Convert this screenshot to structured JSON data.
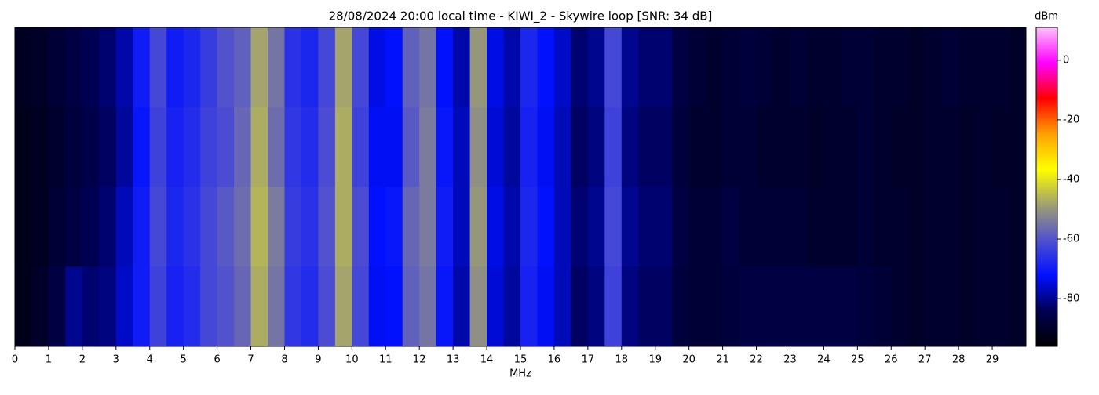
{
  "chart_data": {
    "type": "heatmap",
    "title": "28/08/2024 20:00 local time - KIWI_2 - Skywire loop [SNR: 34 dB]",
    "x_label": "MHz",
    "colorbar_label": "dBm",
    "xlim": [
      0,
      30
    ],
    "xticks": [
      0,
      1,
      2,
      3,
      4,
      5,
      6,
      7,
      8,
      9,
      10,
      11,
      12,
      13,
      14,
      15,
      16,
      17,
      18,
      19,
      20,
      21,
      22,
      23,
      24,
      25,
      26,
      27,
      28,
      29
    ],
    "clim": [
      -96,
      11
    ],
    "cticks": [
      0,
      -20,
      -40,
      -60,
      -80
    ],
    "colormap": [
      "#000000",
      "#000050",
      "#0010ff",
      "#5050d0",
      "#a0a070",
      "#ffff00",
      "#ffa000",
      "#ff0000",
      "#ff00ff",
      "#ffc0ff"
    ],
    "values": [
      [
        -91,
        -90,
        -88,
        -86,
        -84,
        -82,
        -78,
        -70,
        -62,
        -70,
        -68,
        -64,
        -60,
        -58,
        -48,
        -55,
        -66,
        -68,
        -62,
        -48,
        -62,
        -74,
        -72,
        -58,
        -55,
        -72,
        -78,
        -50,
        -74,
        -78,
        -68,
        -72,
        -76,
        -82,
        -80,
        -62,
        -80,
        -82,
        -82,
        -86,
        -88,
        -89,
        -88,
        -87,
        -88,
        -89,
        -88,
        -89,
        -89,
        -88,
        -88,
        -89,
        -89,
        -90,
        -89,
        -88,
        -89,
        -89,
        -89,
        -90
      ],
      [
        -92,
        -91,
        -89,
        -87,
        -85,
        -83,
        -79,
        -71,
        -63,
        -69,
        -67,
        -63,
        -61,
        -57,
        -47,
        -56,
        -65,
        -67,
        -61,
        -47,
        -63,
        -73,
        -73,
        -59,
        -54,
        -71,
        -77,
        -51,
        -75,
        -79,
        -69,
        -73,
        -77,
        -83,
        -81,
        -63,
        -81,
        -83,
        -83,
        -87,
        -89,
        -89,
        -88,
        -88,
        -89,
        -89,
        -89,
        -90,
        -89,
        -89,
        -88,
        -89,
        -90,
        -90,
        -89,
        -89,
        -90,
        -89,
        -90,
        -90
      ],
      [
        -92,
        -91,
        -88,
        -86,
        -84,
        -82,
        -77,
        -70,
        -62,
        -68,
        -66,
        -62,
        -59,
        -56,
        -46,
        -54,
        -64,
        -66,
        -60,
        -47,
        -61,
        -72,
        -71,
        -57,
        -54,
        -70,
        -77,
        -50,
        -74,
        -78,
        -68,
        -72,
        -77,
        -82,
        -80,
        -62,
        -80,
        -82,
        -82,
        -86,
        -88,
        -88,
        -86,
        -88,
        -88,
        -88,
        -88,
        -89,
        -89,
        -89,
        -88,
        -89,
        -89,
        -90,
        -89,
        -89,
        -90,
        -89,
        -89,
        -90
      ],
      [
        -92,
        -90,
        -86,
        -80,
        -82,
        -81,
        -76,
        -70,
        -63,
        -69,
        -67,
        -62,
        -60,
        -57,
        -47,
        -55,
        -65,
        -67,
        -61,
        -48,
        -62,
        -73,
        -72,
        -58,
        -55,
        -71,
        -78,
        -51,
        -75,
        -79,
        -69,
        -73,
        -77,
        -83,
        -81,
        -63,
        -81,
        -83,
        -83,
        -87,
        -88,
        -88,
        -87,
        -86,
        -86,
        -86,
        -86,
        -86,
        -86,
        -86,
        -87,
        -88,
        -89,
        -90,
        -89,
        -89,
        -90,
        -89,
        -89,
        -90
      ]
    ]
  }
}
